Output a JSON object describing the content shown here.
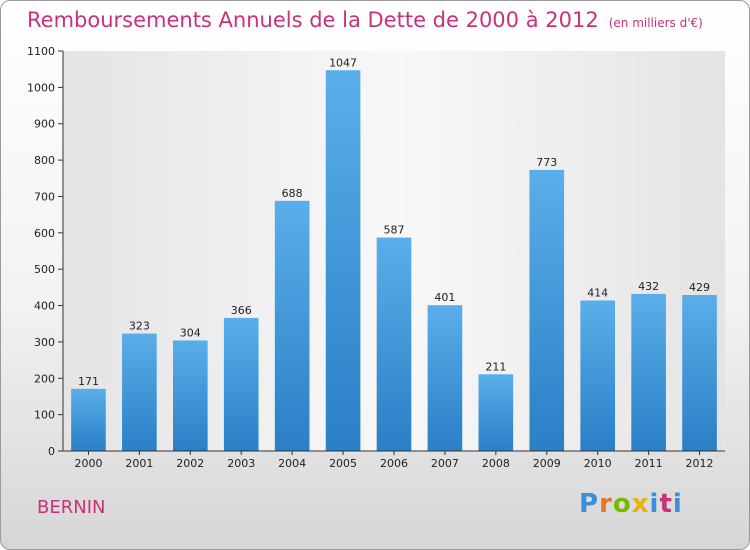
{
  "header": {
    "title": "Remboursements Annuels de la Dette de 2000 à 2012",
    "subtitle": "(en milliers d'€)"
  },
  "commune": "BERNIN",
  "logo": {
    "letters": [
      {
        "char": "P",
        "color": "#3a8fd9"
      },
      {
        "char": "r",
        "color": "#e87722"
      },
      {
        "char": "o",
        "color": "#7ab800"
      },
      {
        "char": "x",
        "color": "#e8b400"
      },
      {
        "char": "i",
        "color": "#3a8fd9"
      },
      {
        "char": "t",
        "color": "#c8327a"
      },
      {
        "char": "i",
        "color": "#3a8fd9"
      }
    ]
  },
  "chart_data": {
    "type": "bar",
    "title": "Remboursements Annuels de la Dette de 2000 à 2012",
    "subtitle": "(en milliers d'€)",
    "categories": [
      "2000",
      "2001",
      "2002",
      "2003",
      "2004",
      "2005",
      "2006",
      "2007",
      "2008",
      "2009",
      "2010",
      "2011",
      "2012"
    ],
    "values": [
      171,
      323,
      304,
      366,
      688,
      1047,
      587,
      401,
      211,
      773,
      414,
      432,
      429
    ],
    "ylim": [
      0,
      1100
    ],
    "yticks": [
      0,
      100,
      200,
      300,
      400,
      500,
      600,
      700,
      800,
      900,
      1000,
      1100
    ],
    "grid": false,
    "bar_color": "#3f95dc"
  }
}
